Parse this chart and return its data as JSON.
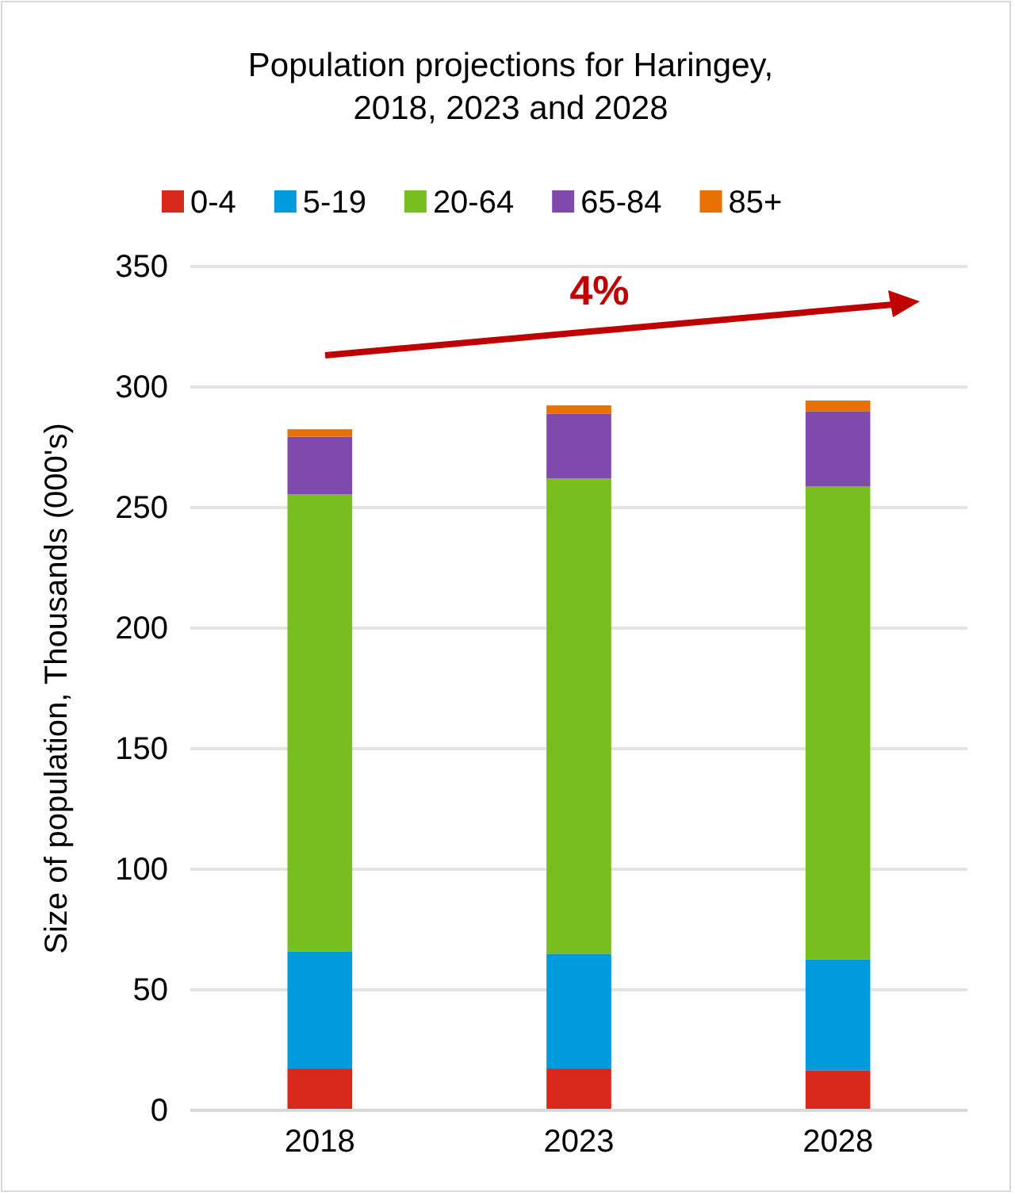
{
  "chart_data": {
    "type": "bar",
    "title": "Population projections for Haringey,\n2018, 2023 and 2028",
    "ylabel": "Size of population,  Thousands (000's)",
    "categories": [
      "2018",
      "2023",
      "2028"
    ],
    "stacked": true,
    "series": [
      {
        "name": "0-4",
        "color": "#d9291c",
        "values": [
          17.4,
          17.4,
          16.5
        ]
      },
      {
        "name": "5-19",
        "color": "#009bdc",
        "values": [
          48.6,
          47.6,
          46.2
        ]
      },
      {
        "name": "20-64",
        "color": "#78be20",
        "values": [
          189.6,
          197,
          196
        ]
      },
      {
        "name": "65-84",
        "color": "#8049ad",
        "values": [
          23.8,
          27,
          31.3
        ]
      },
      {
        "name": "85+",
        "color": "#e87000",
        "values": [
          3.1,
          3.4,
          4.4
        ]
      }
    ],
    "ylim": [
      0,
      350
    ],
    "yticks": [
      0,
      50,
      100,
      150,
      200,
      250,
      300,
      350
    ],
    "grid": "y",
    "legend": "top",
    "annotations": [
      "4%"
    ]
  }
}
